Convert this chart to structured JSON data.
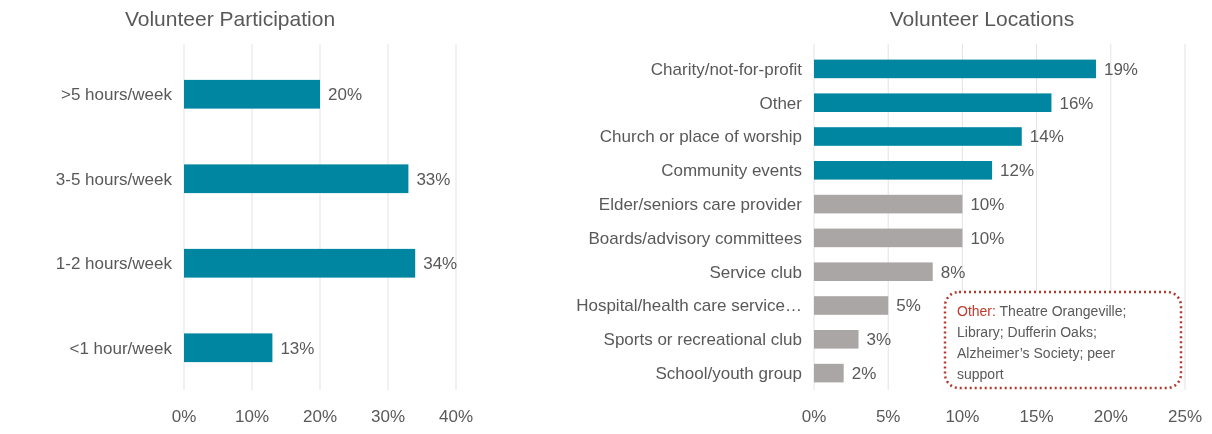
{
  "chart_data": [
    {
      "type": "bar",
      "title": "Volunteer Participation",
      "orientation": "horizontal",
      "categories": [
        ">5 hours/week",
        "3-5 hours/week",
        "1-2 hours/week",
        "<1 hour/week"
      ],
      "values": [
        20,
        33,
        34,
        13
      ],
      "value_labels": [
        "20%",
        "33%",
        "34%",
        "13%"
      ],
      "color": "#0086a0",
      "xlim": [
        0,
        40
      ],
      "xticks": [
        {
          "value": 0,
          "label": "0%"
        },
        {
          "value": 10,
          "label": "10%"
        },
        {
          "value": 20,
          "label": "20%"
        },
        {
          "value": 30,
          "label": "30%"
        },
        {
          "value": 40,
          "label": "40%"
        }
      ],
      "grid": "x"
    },
    {
      "type": "bar",
      "title": "Volunteer Locations",
      "orientation": "horizontal",
      "categories": [
        "Charity/not-for-profit",
        "Other",
        "Church or place of worship",
        "Community events",
        "Elder/seniors care provider",
        "Boards/advisory committees",
        "Service club ",
        "Hospital/health care service…",
        "Sports or recreational club",
        "School/youth group"
      ],
      "values": [
        19,
        16,
        14,
        12,
        10,
        10,
        8,
        5,
        3,
        2
      ],
      "value_labels": [
        "19%",
        "16%",
        "14%",
        "12%",
        "10%",
        "10%",
        "8%",
        "5%",
        "3%",
        "2%"
      ],
      "colors": [
        "#0086a0",
        "#0086a0",
        "#0086a0",
        "#0086a0",
        "#aaa6a6",
        "#aaa6a6",
        "#aaa6a6",
        "#aaa6a6",
        "#aaa6a6",
        "#aaa6a6"
      ],
      "xlim": [
        0,
        25
      ],
      "xticks": [
        {
          "value": 0,
          "label": "0%"
        },
        {
          "value": 5,
          "label": "5%"
        },
        {
          "value": 10,
          "label": "10%"
        },
        {
          "value": 15,
          "label": "15%"
        },
        {
          "value": 20,
          "label": "20%"
        },
        {
          "value": 25,
          "label": "25%"
        }
      ],
      "grid": "x",
      "annotations": [
        "Other: Theatre Orangeville; Library; Dufferin Oaks; Alzheimer’s Society; peer support"
      ]
    }
  ]
}
